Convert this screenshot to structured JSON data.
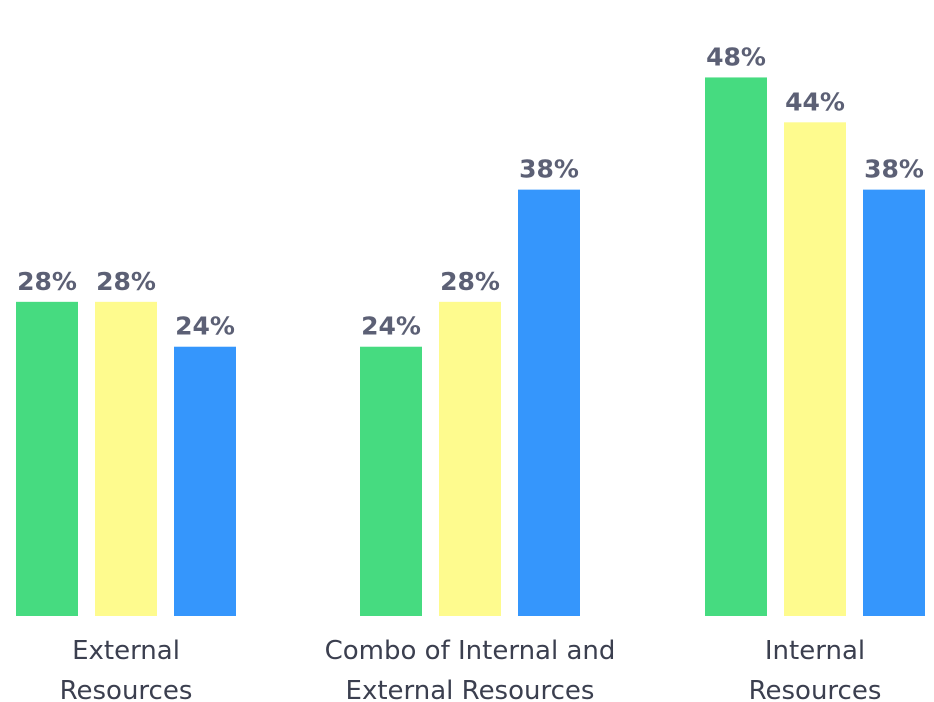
{
  "chart_data": {
    "type": "bar",
    "categories": [
      [
        "External",
        "Resources"
      ],
      [
        "Combo of Internal and",
        "External Resources"
      ],
      [
        "Internal",
        "Resources"
      ]
    ],
    "series": [
      {
        "values": [
          28,
          24,
          48
        ],
        "color": "#46db80"
      },
      {
        "values": [
          28,
          28,
          44
        ],
        "color": "#fefb8e"
      },
      {
        "values": [
          24,
          38,
          38
        ],
        "color": "#3596fc"
      }
    ],
    "value_suffix": "%",
    "ylim": [
      0,
      53
    ],
    "title": "",
    "xlabel": "",
    "ylabel": "",
    "grid": false,
    "legend": "none",
    "value_labels": "above-bars"
  }
}
